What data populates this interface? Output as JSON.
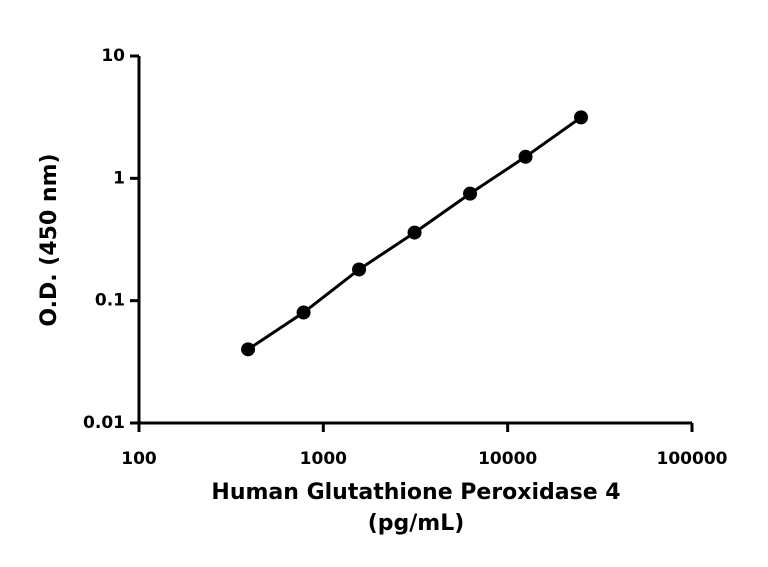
{
  "chart_data": {
    "type": "scatter",
    "xlabel": [
      "Human Glutathione Peroxidase 4",
      "(pg/mL)"
    ],
    "ylabel": "O.D. (450 nm)",
    "xscale": "log",
    "yscale": "log",
    "color": "#000000",
    "fit_line": true,
    "x": [
      390.6,
      781.25,
      1562.5,
      3125,
      6250,
      12500,
      25000
    ],
    "values": [
      0.04,
      0.08,
      0.18,
      0.36,
      0.75,
      1.5,
      3.15
    ],
    "xlim": [
      100,
      100000
    ],
    "xticks": [
      100,
      1000,
      10000,
      100000
    ],
    "ylim": [
      0.01,
      10
    ],
    "yticks": [
      0.01,
      0.1,
      1,
      10
    ]
  }
}
